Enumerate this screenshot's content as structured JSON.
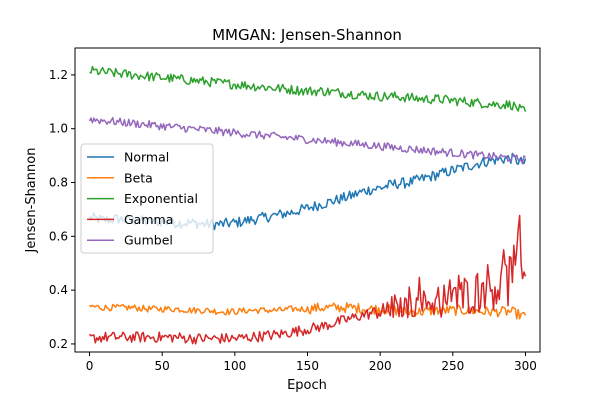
{
  "chart_data": {
    "type": "line",
    "title": "MMGAN: Jensen-Shannon",
    "xlabel": "Epoch",
    "ylabel": "Jensen-Shannon",
    "xlim": [
      -10,
      310
    ],
    "ylim": [
      0.17,
      1.3
    ],
    "x_ticks": [
      0,
      50,
      100,
      150,
      200,
      250,
      300
    ],
    "y_ticks": [
      0.2,
      0.4,
      0.6,
      0.8,
      1.0,
      1.2
    ],
    "x_tick_labels": [
      "0",
      "50",
      "100",
      "150",
      "200",
      "250",
      "300"
    ],
    "y_tick_labels": [
      "0.2",
      "0.4",
      "0.6",
      "0.8",
      "1.0",
      "1.2"
    ],
    "legend_position": "center-left",
    "grid": false,
    "x_range": [
      0,
      300
    ],
    "series": [
      {
        "name": "Normal",
        "color": "#1f77b4",
        "x": [
          0,
          10,
          20,
          30,
          40,
          50,
          60,
          70,
          80,
          90,
          100,
          110,
          120,
          130,
          140,
          150,
          160,
          170,
          180,
          190,
          200,
          210,
          220,
          230,
          240,
          250,
          260,
          270,
          280,
          290,
          300
        ],
        "values": [
          0.67,
          0.66,
          0.665,
          0.66,
          0.655,
          0.655,
          0.65,
          0.65,
          0.645,
          0.645,
          0.65,
          0.66,
          0.67,
          0.68,
          0.69,
          0.705,
          0.72,
          0.735,
          0.75,
          0.77,
          0.78,
          0.795,
          0.8,
          0.815,
          0.83,
          0.845,
          0.86,
          0.875,
          0.885,
          0.89,
          0.87
        ],
        "noise": 0.02
      },
      {
        "name": "Beta",
        "color": "#ff7f0e",
        "x": [
          0,
          10,
          20,
          30,
          40,
          50,
          60,
          70,
          80,
          90,
          100,
          110,
          120,
          130,
          140,
          150,
          160,
          170,
          180,
          190,
          200,
          210,
          220,
          230,
          240,
          250,
          260,
          270,
          280,
          290,
          300
        ],
        "values": [
          0.34,
          0.335,
          0.335,
          0.335,
          0.33,
          0.33,
          0.33,
          0.325,
          0.325,
          0.32,
          0.32,
          0.325,
          0.325,
          0.325,
          0.33,
          0.33,
          0.335,
          0.335,
          0.335,
          0.33,
          0.33,
          0.325,
          0.32,
          0.32,
          0.325,
          0.325,
          0.325,
          0.32,
          0.32,
          0.32,
          0.3
        ],
        "noise": 0.012
      },
      {
        "name": "Exponential",
        "color": "#2ca02c",
        "x": [
          0,
          10,
          20,
          30,
          40,
          50,
          60,
          70,
          80,
          90,
          100,
          110,
          120,
          130,
          140,
          150,
          160,
          170,
          180,
          190,
          200,
          210,
          220,
          230,
          240,
          250,
          260,
          270,
          280,
          290,
          300
        ],
        "values": [
          1.215,
          1.21,
          1.205,
          1.2,
          1.195,
          1.19,
          1.185,
          1.18,
          1.175,
          1.17,
          1.165,
          1.16,
          1.155,
          1.15,
          1.145,
          1.14,
          1.14,
          1.135,
          1.13,
          1.125,
          1.12,
          1.12,
          1.115,
          1.11,
          1.11,
          1.105,
          1.1,
          1.095,
          1.09,
          1.09,
          1.06
        ],
        "noise": 0.018
      },
      {
        "name": "Gamma",
        "color": "#d62728",
        "x": [
          0,
          10,
          20,
          30,
          40,
          50,
          60,
          70,
          80,
          90,
          100,
          110,
          120,
          130,
          140,
          150,
          160,
          170,
          180,
          190,
          200,
          210,
          220,
          230,
          240,
          250,
          260,
          270,
          280,
          290,
          300
        ],
        "values": [
          0.22,
          0.225,
          0.225,
          0.225,
          0.225,
          0.225,
          0.225,
          0.22,
          0.22,
          0.22,
          0.22,
          0.225,
          0.23,
          0.235,
          0.245,
          0.255,
          0.265,
          0.28,
          0.295,
          0.31,
          0.32,
          0.33,
          0.34,
          0.35,
          0.36,
          0.37,
          0.385,
          0.4,
          0.42,
          0.44,
          0.46
        ],
        "noise": 0.02
      },
      {
        "name": "Gumbel",
        "color": "#9467bd",
        "x": [
          0,
          10,
          20,
          30,
          40,
          50,
          60,
          70,
          80,
          90,
          100,
          110,
          120,
          130,
          140,
          150,
          160,
          170,
          180,
          190,
          200,
          210,
          220,
          230,
          240,
          250,
          260,
          270,
          280,
          290,
          300
        ],
        "values": [
          1.035,
          1.03,
          1.025,
          1.02,
          1.015,
          1.01,
          1.005,
          1.0,
          0.995,
          0.99,
          0.985,
          0.98,
          0.975,
          0.97,
          0.965,
          0.96,
          0.955,
          0.95,
          0.945,
          0.94,
          0.935,
          0.93,
          0.925,
          0.92,
          0.915,
          0.91,
          0.905,
          0.9,
          0.895,
          0.89,
          0.885
        ],
        "noise": 0.015
      }
    ]
  }
}
